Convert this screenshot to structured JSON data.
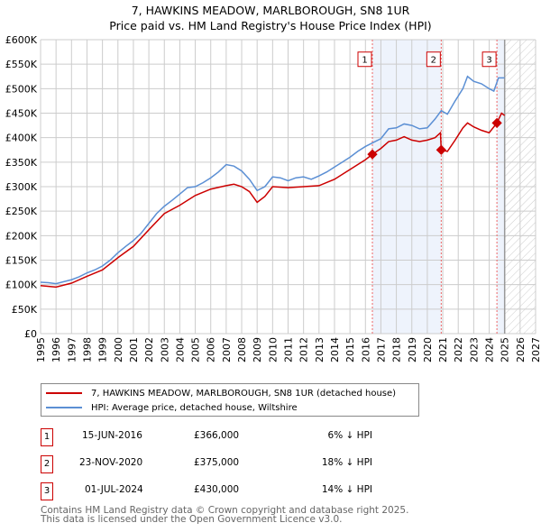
{
  "chart_data": {
    "type": "line",
    "title": "7, HAWKINS MEADOW, MARLBOROUGH, SN8 1UR",
    "subtitle": "Price paid vs. HM Land Registry's House Price Index (HPI)",
    "xlim": [
      1995,
      2027
    ],
    "ylim": [
      0,
      600000
    ],
    "x_ticks": [
      "1995",
      "1996",
      "1997",
      "1998",
      "1999",
      "2000",
      "2001",
      "2002",
      "2003",
      "2004",
      "2005",
      "2006",
      "2007",
      "2008",
      "2009",
      "2010",
      "2011",
      "2012",
      "2013",
      "2014",
      "2015",
      "2016",
      "2017",
      "2018",
      "2019",
      "2020",
      "2021",
      "2022",
      "2023",
      "2024",
      "2025",
      "2026",
      "2027"
    ],
    "y_ticks": [
      "£0",
      "£50K",
      "£100K",
      "£150K",
      "£200K",
      "£250K",
      "£300K",
      "£350K",
      "£400K",
      "£450K",
      "£500K",
      "£550K",
      "£600K"
    ],
    "grid": true,
    "forecast_start": 2025.0,
    "series": [
      {
        "name": "7, HAWKINS MEADOW, MARLBOROUGH, SN8 1UR (detached house)",
        "color": "#cc0000",
        "x": [
          1995,
          1996,
          1997,
          1998,
          1999,
          2000,
          2001,
          2002,
          2003,
          2004,
          2005,
          2006,
          2007,
          2007.5,
          2008,
          2008.5,
          2009,
          2009.5,
          2010,
          2011,
          2012,
          2013,
          2014,
          2015,
          2016,
          2016.45,
          2017,
          2017.5,
          2018,
          2018.5,
          2019,
          2019.5,
          2020,
          2020.5,
          2020.85,
          2020.9,
          2021.3,
          2021.8,
          2022.3,
          2022.6,
          2023,
          2023.5,
          2024,
          2024.5,
          2024.8,
          2025
        ],
        "y": [
          98,
          95,
          103,
          117,
          130,
          155,
          178,
          212,
          245,
          262,
          282,
          295,
          302,
          305,
          300,
          290,
          268,
          280,
          300,
          298,
          300,
          302,
          315,
          335,
          355,
          366,
          378,
          392,
          395,
          402,
          395,
          392,
          395,
          400,
          410,
          375,
          372,
          395,
          420,
          430,
          422,
          415,
          410,
          430,
          450,
          445
        ]
      },
      {
        "name": "HPI: Average price, detached house, Wiltshire",
        "color": "#5b8fd4",
        "x": [
          1995,
          1995.5,
          1996,
          1996.5,
          1997,
          1997.5,
          1998,
          1998.5,
          1999,
          1999.5,
          2000,
          2000.5,
          2001,
          2001.5,
          2002,
          2002.5,
          2003,
          2003.5,
          2004,
          2004.5,
          2005,
          2005.5,
          2006,
          2006.5,
          2007,
          2007.5,
          2008,
          2008.5,
          2009,
          2009.5,
          2010,
          2010.5,
          2011,
          2011.5,
          2012,
          2012.5,
          2013,
          2013.5,
          2014,
          2014.5,
          2015,
          2015.5,
          2016,
          2016.5,
          2017,
          2017.5,
          2018,
          2018.5,
          2019,
          2019.5,
          2020,
          2020.5,
          2020.9,
          2021.3,
          2021.8,
          2022.3,
          2022.6,
          2023,
          2023.5,
          2024,
          2024.3,
          2024.6,
          2025
        ],
        "y": [
          105,
          104,
          102,
          106,
          110,
          116,
          124,
          130,
          138,
          150,
          165,
          178,
          190,
          205,
          225,
          245,
          260,
          272,
          285,
          298,
          300,
          308,
          318,
          330,
          345,
          342,
          332,
          315,
          292,
          300,
          320,
          318,
          312,
          318,
          320,
          315,
          322,
          330,
          340,
          350,
          360,
          372,
          382,
          390,
          398,
          418,
          420,
          428,
          425,
          418,
          420,
          438,
          455,
          448,
          475,
          500,
          525,
          515,
          510,
          500,
          495,
          522,
          522
        ]
      }
    ],
    "y_units": 1000,
    "sales": [
      {
        "n": "1",
        "x": 2016.45,
        "price": 366000,
        "date": "15-JUN-2016",
        "price_label": "£366,000",
        "hpi": "6% ↓ HPI"
      },
      {
        "n": "2",
        "x": 2020.9,
        "price": 375000,
        "date": "23-NOV-2020",
        "price_label": "£375,000",
        "hpi": "18% ↓ HPI"
      },
      {
        "n": "3",
        "x": 2024.5,
        "price": 430000,
        "date": "01-JUL-2024",
        "price_label": "£430,000",
        "hpi": "14% ↓ HPI"
      }
    ]
  },
  "footer": {
    "line1": "Contains HM Land Registry data © Crown copyright and database right 2025.",
    "line2": "This data is licensed under the Open Government Licence v3.0."
  }
}
